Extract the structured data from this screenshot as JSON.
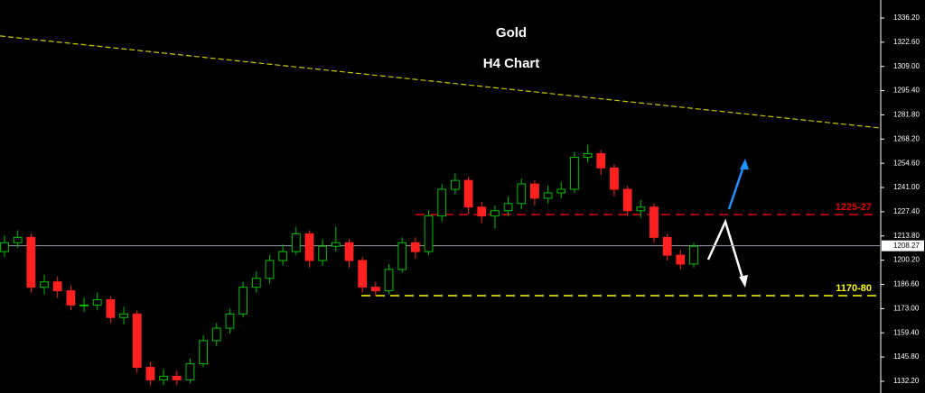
{
  "chart_data": {
    "type": "candlestick",
    "title": "Gold",
    "subtitle": "H4 Chart",
    "open": [
      1205,
      1210,
      1213,
      1185,
      1188,
      1183,
      1175,
      1175,
      1178,
      1168,
      1170,
      1140,
      1133,
      1135,
      1133,
      1142,
      1155,
      1162,
      1170,
      1185,
      1190,
      1200,
      1205,
      1215,
      1200,
      1208,
      1210,
      1200,
      1185,
      1183,
      1195,
      1210,
      1205,
      1225,
      1240,
      1245,
      1230,
      1225,
      1228,
      1232,
      1243,
      1235,
      1238,
      1240,
      1258,
      1260,
      1252,
      1240,
      1228,
      1230,
      1213,
      1203,
      1198
    ],
    "high": [
      1214,
      1217,
      1215,
      1192,
      1191,
      1186,
      1179,
      1182,
      1180,
      1174,
      1172,
      1143,
      1139,
      1138,
      1145,
      1158,
      1165,
      1173,
      1188,
      1194,
      1203,
      1209,
      1219,
      1217,
      1212,
      1219,
      1212,
      1202,
      1188,
      1198,
      1213,
      1213,
      1228,
      1243,
      1249,
      1247,
      1233,
      1231,
      1236,
      1246,
      1245,
      1242,
      1244,
      1261,
      1265,
      1262,
      1254,
      1242,
      1234,
      1232,
      1215,
      1206,
      1210
    ],
    "low": [
      1202,
      1207,
      1182,
      1181,
      1179,
      1172,
      1171,
      1172,
      1165,
      1164,
      1137,
      1130,
      1130,
      1130,
      1131,
      1140,
      1152,
      1159,
      1168,
      1182,
      1187,
      1197,
      1203,
      1196,
      1197,
      1205,
      1196,
      1182,
      1180,
      1181,
      1193,
      1201,
      1203,
      1222,
      1237,
      1226,
      1221,
      1218,
      1225,
      1229,
      1231,
      1232,
      1235,
      1238,
      1255,
      1248,
      1236,
      1225,
      1224,
      1210,
      1200,
      1195,
      1196
    ],
    "close": [
      1210,
      1213,
      1185,
      1188,
      1183,
      1175,
      1175,
      1178,
      1168,
      1170,
      1140,
      1133,
      1135,
      1133,
      1142,
      1155,
      1162,
      1170,
      1185,
      1190,
      1200,
      1205,
      1215,
      1200,
      1208,
      1210,
      1200,
      1185,
      1183,
      1195,
      1210,
      1205,
      1225,
      1240,
      1245,
      1230,
      1225,
      1228,
      1232,
      1243,
      1235,
      1238,
      1240,
      1258,
      1260,
      1252,
      1240,
      1228,
      1230,
      1213,
      1203,
      1198,
      1208
    ],
    "up_color": "#00c000",
    "down_color": "#ff2020",
    "ylim": [
      1125.6,
      1346.3
    ],
    "yticks": [
      {
        "value": 1336.2,
        "label": "1336.20"
      },
      {
        "value": 1322.6,
        "label": "1322.60"
      },
      {
        "value": 1309,
        "label": "1309.00"
      },
      {
        "value": 1295.4,
        "label": "1295.40"
      },
      {
        "value": 1281.8,
        "label": "1281.80"
      },
      {
        "value": 1268.2,
        "label": "1268.20"
      },
      {
        "value": 1254.6,
        "label": "1254.60"
      },
      {
        "value": 1241,
        "label": "1241.00"
      },
      {
        "value": 1227.4,
        "label": "1227.40"
      },
      {
        "value": 1213.8,
        "label": "1213.80"
      },
      {
        "value": 1200.2,
        "label": "1200.20"
      },
      {
        "value": 1186.6,
        "label": "1186.60"
      },
      {
        "value": 1173,
        "label": "1173.00"
      },
      {
        "value": 1159.4,
        "label": "1159.40"
      },
      {
        "value": 1145.8,
        "label": "1145.80"
      },
      {
        "value": 1132.2,
        "label": "1132.20"
      }
    ],
    "last_price": {
      "value": 1208.27,
      "label": "1208.27"
    },
    "levels": [
      {
        "label": "1225-27",
        "value": 1225.8,
        "color": "#e00000"
      },
      {
        "label": "1170-80",
        "value": 1180.3,
        "color": "#ffff00"
      }
    ],
    "trendline": {
      "start": 1326.1,
      "end": 1274.4,
      "color": "#c8c800"
    }
  }
}
